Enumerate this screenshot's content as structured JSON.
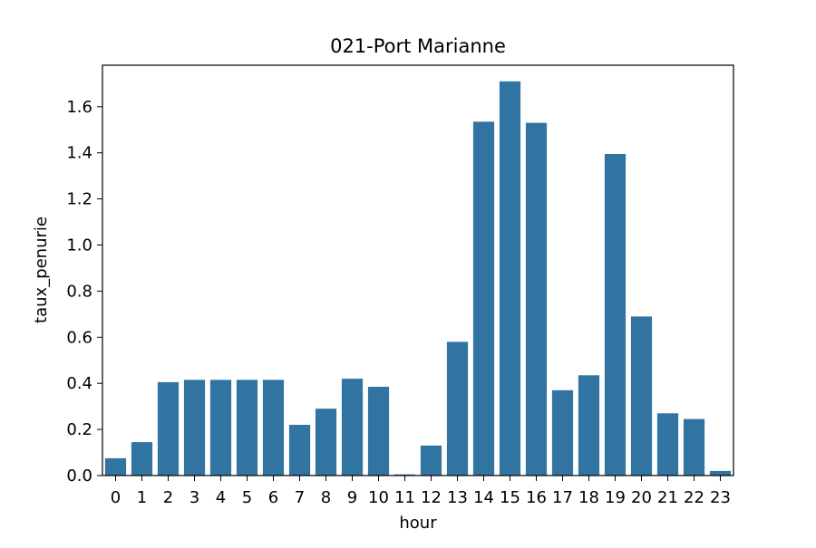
{
  "chart_data": {
    "type": "bar",
    "title": "021-Port Marianne",
    "xlabel": "hour",
    "ylabel": "taux_penurie",
    "categories": [
      "0",
      "1",
      "2",
      "3",
      "4",
      "5",
      "6",
      "7",
      "8",
      "9",
      "10",
      "11",
      "12",
      "13",
      "14",
      "15",
      "16",
      "17",
      "18",
      "19",
      "20",
      "21",
      "22",
      "23"
    ],
    "values": [
      0.075,
      0.145,
      0.405,
      0.415,
      0.415,
      0.415,
      0.415,
      0.22,
      0.29,
      0.42,
      0.385,
      0.005,
      0.13,
      0.58,
      1.535,
      1.71,
      1.53,
      0.37,
      0.435,
      1.395,
      0.69,
      0.27,
      0.245,
      0.02
    ],
    "ylim": [
      0,
      1.78
    ],
    "yticks": [
      0.0,
      0.2,
      0.4,
      0.6,
      0.8,
      1.0,
      1.2,
      1.4,
      1.6
    ],
    "ytick_labels": [
      "0.0",
      "0.2",
      "0.4",
      "0.6",
      "0.8",
      "1.0",
      "1.2",
      "1.4",
      "1.6"
    ],
    "bar_color": "#3274a1",
    "grid": false,
    "legend": "none"
  }
}
